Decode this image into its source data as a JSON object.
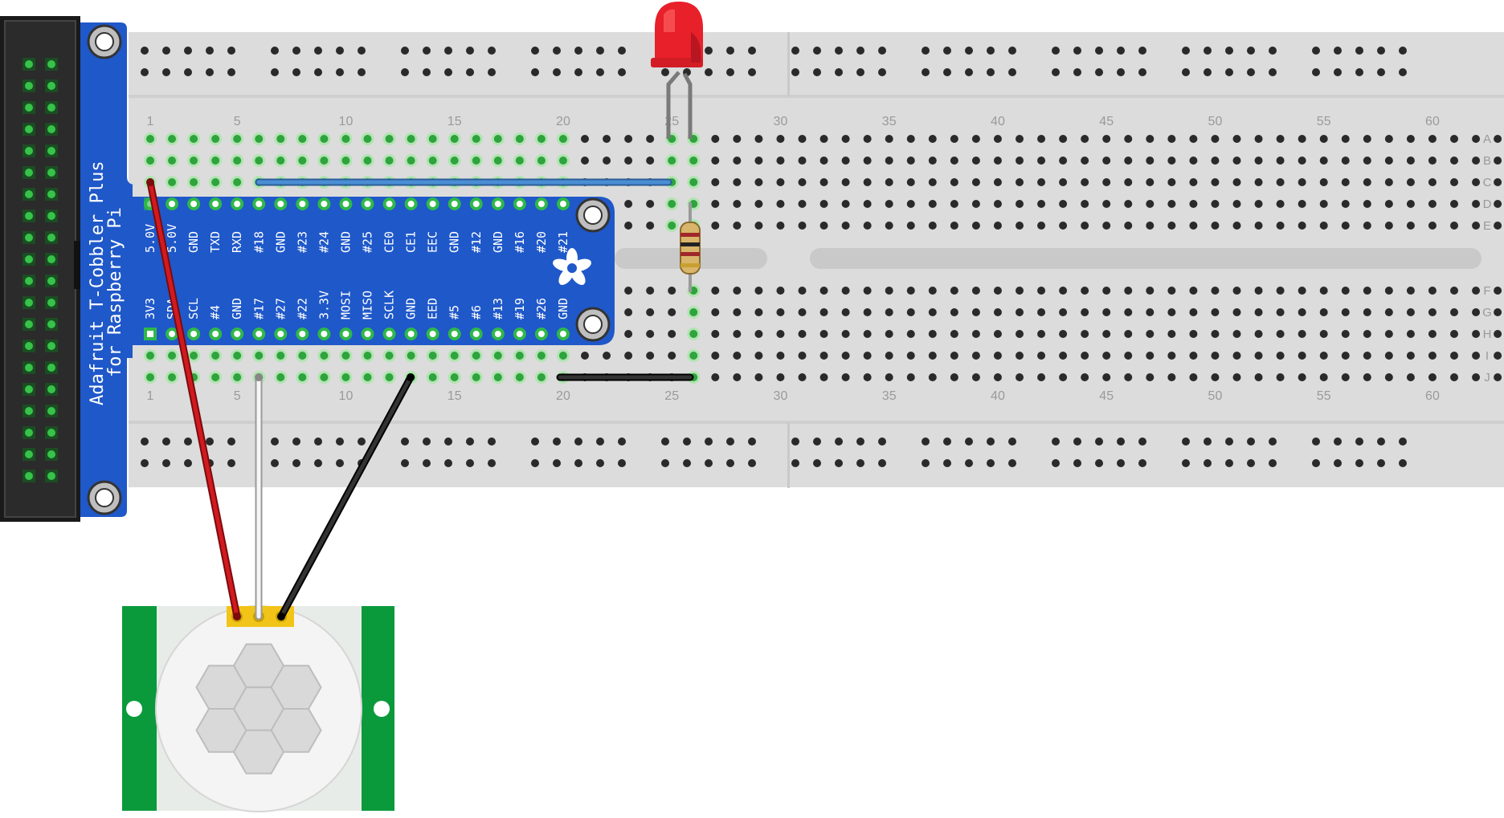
{
  "cobbler": {
    "title_line1": "Adafruit T-Cobbler Plus",
    "title_line2": "for Raspberry Pi",
    "top_pins": [
      "5.0V",
      "5.0V",
      "GND",
      "TXD",
      "RXD",
      "#18",
      "GND",
      "#23",
      "#24",
      "GND",
      "#25",
      "CE0",
      "CE1",
      "EEC",
      "GND",
      "#12",
      "GND",
      "#16",
      "#20",
      "#21"
    ],
    "bottom_pins": [
      "3V3",
      "SDA",
      "SCL",
      "#4",
      "GND",
      "#17",
      "#27",
      "#22",
      "3.3V",
      "MOSI",
      "MISO",
      "SCLK",
      "GND",
      "EED",
      "#5",
      "#6",
      "#13",
      "#19",
      "#26",
      "GND"
    ],
    "logo_icon": "adafruit-flower-icon"
  },
  "breadboard": {
    "columns": 63,
    "column_labels": [
      "1",
      "5",
      "10",
      "15",
      "20",
      "25",
      "30",
      "35",
      "40",
      "45",
      "50",
      "55",
      "60"
    ],
    "row_labels_top": [
      "A",
      "B",
      "C",
      "D",
      "E"
    ],
    "row_labels_bottom": [
      "F",
      "G",
      "H",
      "I",
      "J"
    ]
  },
  "components": {
    "led": {
      "color": "#e8202a"
    },
    "resistor": {
      "body_color": "#d8b56a"
    },
    "pir_sensor": {
      "board_color": "#0a9a3c"
    }
  },
  "wires": [
    {
      "name": "red-wire",
      "color": "#c8161b"
    },
    {
      "name": "white-wire",
      "color": "#f4f4f4"
    },
    {
      "name": "black-wire",
      "color": "#1e1e1e"
    },
    {
      "name": "blue-wire",
      "color": "#3d7fc4"
    },
    {
      "name": "ground-jumper-wire",
      "color": "#1e1e1e"
    }
  ]
}
